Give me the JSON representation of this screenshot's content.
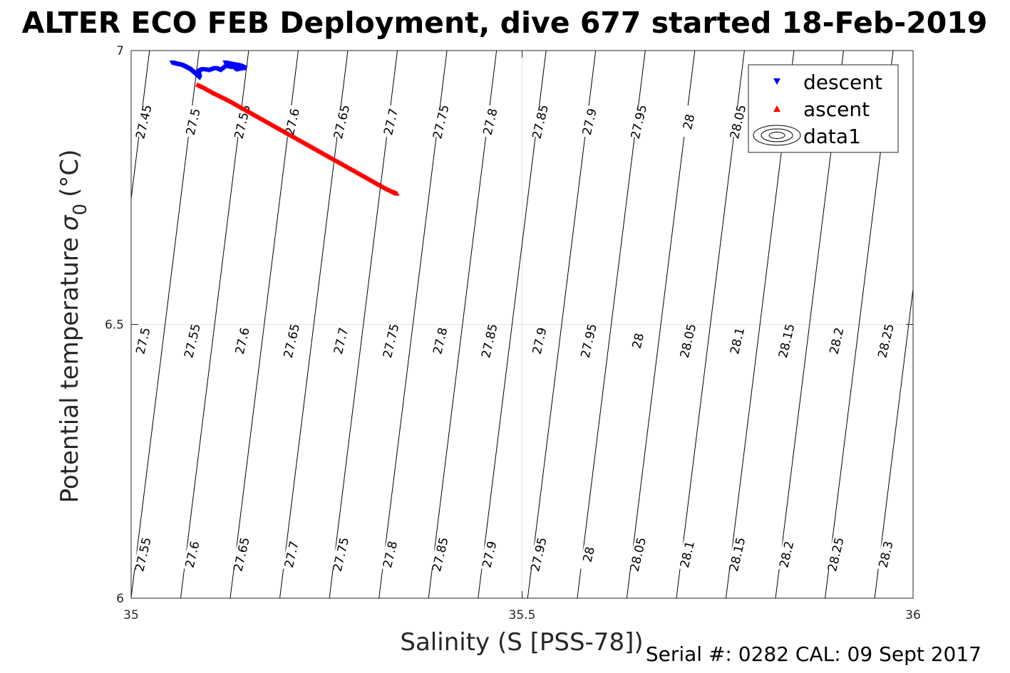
{
  "chart_data": {
    "type": "scatter",
    "title": "ALTER ECO FEB Deployment, dive 677 started 18-Feb-2019",
    "xlabel": "Salinity (S [PSS-78])",
    "ylabel_main": "Potential temperature",
    "ylabel_symbol": "σ",
    "ylabel_sub": "0",
    "ylabel_unit": "(°C)",
    "xlim": [
      35,
      36
    ],
    "ylim": [
      6,
      7
    ],
    "xticks": [
      35,
      35.5,
      36
    ],
    "xtick_labels": [
      "35",
      "35.5",
      "36"
    ],
    "yticks": [
      6,
      6.5,
      7
    ],
    "ytick_labels": [
      "6",
      "6.5",
      "7"
    ],
    "grid": true,
    "legend_position": "top-right",
    "legend": [
      "descent",
      "ascent",
      "data1"
    ],
    "series": [
      {
        "name": "descent",
        "marker": "down-triangle",
        "color": "#0000ff",
        "x": [
          35.052,
          35.058,
          35.064,
          35.07,
          35.075,
          35.08,
          35.084,
          35.088,
          35.086,
          35.092,
          35.1,
          35.108,
          35.115,
          35.122,
          35.128,
          35.12,
          35.127,
          35.135,
          35.14,
          35.146,
          35.135,
          35.128
        ],
        "y": [
          6.978,
          6.976,
          6.974,
          6.97,
          6.966,
          6.96,
          6.955,
          6.95,
          6.962,
          6.966,
          6.964,
          6.968,
          6.964,
          6.972,
          6.97,
          6.978,
          6.976,
          6.974,
          6.972,
          6.968,
          6.965,
          6.972
        ]
      },
      {
        "name": "ascent",
        "marker": "up-triangle",
        "color": "#ff0000",
        "x": [
          35.085,
          35.095,
          35.105,
          35.115,
          35.125,
          35.135,
          35.145,
          35.155,
          35.165,
          35.175,
          35.185,
          35.195,
          35.205,
          35.215,
          35.225,
          35.235,
          35.245,
          35.255,
          35.265,
          35.275,
          35.285,
          35.295,
          35.305,
          35.315,
          35.325,
          35.335,
          35.34
        ],
        "y": [
          6.938,
          6.931,
          6.923,
          6.916,
          6.909,
          6.901,
          6.893,
          6.885,
          6.877,
          6.869,
          6.861,
          6.853,
          6.845,
          6.837,
          6.829,
          6.821,
          6.813,
          6.805,
          6.797,
          6.789,
          6.781,
          6.773,
          6.765,
          6.757,
          6.749,
          6.742,
          6.739
        ]
      }
    ],
    "contour_labels": [
      {
        "text": "27.45",
        "x": 35.016,
        "y": 6.87
      },
      {
        "text": "27.5",
        "x": 35.079,
        "y": 6.87
      },
      {
        "text": "27.55",
        "x": 35.142,
        "y": 6.87
      },
      {
        "text": "27.6",
        "x": 35.206,
        "y": 6.87
      },
      {
        "text": "27.65",
        "x": 35.269,
        "y": 6.87
      },
      {
        "text": "27.7",
        "x": 35.332,
        "y": 6.87
      },
      {
        "text": "27.75",
        "x": 35.396,
        "y": 6.87
      },
      {
        "text": "27.8",
        "x": 35.459,
        "y": 6.87
      },
      {
        "text": "27.85",
        "x": 35.523,
        "y": 6.87
      },
      {
        "text": "27.9",
        "x": 35.586,
        "y": 6.87
      },
      {
        "text": "27.95",
        "x": 35.649,
        "y": 6.87
      },
      {
        "text": "28",
        "x": 35.713,
        "y": 6.87
      },
      {
        "text": "28.05",
        "x": 35.776,
        "y": 6.87
      },
      {
        "text": "27.5",
        "x": 35.015,
        "y": 6.47
      },
      {
        "text": "27.55",
        "x": 35.078,
        "y": 6.47
      },
      {
        "text": "27.6",
        "x": 35.142,
        "y": 6.47
      },
      {
        "text": "27.65",
        "x": 35.205,
        "y": 6.47
      },
      {
        "text": "27.7",
        "x": 35.268,
        "y": 6.47
      },
      {
        "text": "27.75",
        "x": 35.332,
        "y": 6.47
      },
      {
        "text": "27.8",
        "x": 35.395,
        "y": 6.47
      },
      {
        "text": "27.85",
        "x": 35.458,
        "y": 6.47
      },
      {
        "text": "27.9",
        "x": 35.522,
        "y": 6.47
      },
      {
        "text": "27.95",
        "x": 35.585,
        "y": 6.47
      },
      {
        "text": "28",
        "x": 35.648,
        "y": 6.47
      },
      {
        "text": "28.05",
        "x": 35.712,
        "y": 6.47
      },
      {
        "text": "28.1",
        "x": 35.775,
        "y": 6.47
      },
      {
        "text": "28.15",
        "x": 35.838,
        "y": 6.47
      },
      {
        "text": "28.2",
        "x": 35.902,
        "y": 6.47
      },
      {
        "text": "28.25",
        "x": 35.965,
        "y": 6.47
      },
      {
        "text": "27.55",
        "x": 35.015,
        "y": 6.08
      },
      {
        "text": "27.6",
        "x": 35.078,
        "y": 6.08
      },
      {
        "text": "27.65",
        "x": 35.141,
        "y": 6.08
      },
      {
        "text": "27.7",
        "x": 35.205,
        "y": 6.08
      },
      {
        "text": "27.75",
        "x": 35.268,
        "y": 6.08
      },
      {
        "text": "27.8",
        "x": 35.331,
        "y": 6.08
      },
      {
        "text": "27.85",
        "x": 35.395,
        "y": 6.08
      },
      {
        "text": "27.9",
        "x": 35.458,
        "y": 6.08
      },
      {
        "text": "27.95",
        "x": 35.521,
        "y": 6.08
      },
      {
        "text": "28",
        "x": 35.585,
        "y": 6.08
      },
      {
        "text": "28.05",
        "x": 35.648,
        "y": 6.08
      },
      {
        "text": "28.1",
        "x": 35.711,
        "y": 6.08
      },
      {
        "text": "28.15",
        "x": 35.775,
        "y": 6.08
      },
      {
        "text": "28.2",
        "x": 35.838,
        "y": 6.08
      },
      {
        "text": "28.25",
        "x": 35.901,
        "y": 6.08
      },
      {
        "text": "28.3",
        "x": 35.965,
        "y": 6.08
      }
    ]
  },
  "footer": {
    "text": "Serial #: 0282  CAL: 09 Sept 2017"
  }
}
